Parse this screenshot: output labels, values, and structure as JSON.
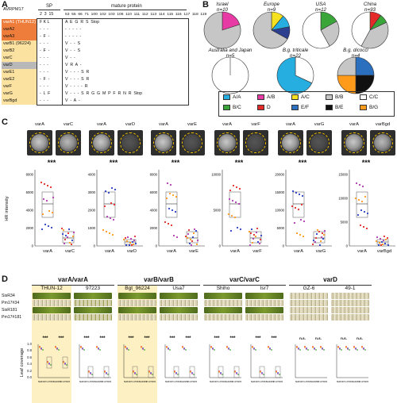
{
  "panel_labels": {
    "a": "A",
    "b": "B",
    "c": "C",
    "d": "D"
  },
  "panelA": {
    "header": "AVRPM17",
    "sp_label": "SP",
    "mature_label": "mature protein",
    "sp_positions": "2  3  15",
    "mature_positions": "53  55  66  71  100  102  103  106  110  111  112  113  114  115  116  117  118  119",
    "rows": [
      {
        "name": "varA1 (THUN12)",
        "sp": "F K L",
        "mat": "A  E  G  R  S  Stop",
        "color": "#ee7d3c"
      },
      {
        "name": "varA2",
        "sp": "-  -  -",
        "mat": "-  -  -  -  -",
        "color": "#ee7d3c"
      },
      {
        "name": "varA3",
        "sp": "-  F  -",
        "mat": "-  -  -  -  -",
        "color": "#ee7d3c"
      },
      {
        "name": "varB1 (96224)",
        "sp": "-  -  -",
        "mat": "V  -  -  S",
        "color": "#fbe2a0"
      },
      {
        "name": "varB2",
        "sp": "-  F  -",
        "mat": "V  -  -  S",
        "color": "#fbe2a0"
      },
      {
        "name": "varC",
        "sp": "-  -  -",
        "mat": "V  -  -",
        "color": "#fbe2a0"
      },
      {
        "name": "varD",
        "sp": "-  -  -",
        "mat": "V  R  A  -",
        "color": "#b8b8b8"
      },
      {
        "name": "varE1",
        "sp": "-  -  -",
        "mat": "V  -  -  -  S  R",
        "color": "#fbe2a0"
      },
      {
        "name": "varE2",
        "sp": "-  F  -",
        "mat": "V  -  -  -  S  R",
        "color": "#fbe2a0"
      },
      {
        "name": "varF",
        "sp": "-  -  -",
        "mat": "V  -  -  -  -  R",
        "color": "#fbe2a0"
      },
      {
        "name": "varG",
        "sp": "-  L  F",
        "mat": "V  -  -  -  S  R  G  G  M  P  F  R  N  R  Stop",
        "color": "#fbe2a0"
      },
      {
        "name": "varBgd",
        "sp": "-  -  -",
        "mat": "V  -  A  -",
        "color": "#fbe2a0"
      }
    ]
  },
  "panelB": {
    "pies": [
      {
        "title": "Israel",
        "n": "n=10",
        "slices": [
          {
            "v": 0.2,
            "c": "#e83aa5"
          },
          {
            "v": 0.8,
            "c": "#c6c6c6"
          }
        ]
      },
      {
        "title": "Europe",
        "n": "n=9",
        "slices": [
          {
            "v": 0.11,
            "c": "#f5e11f"
          },
          {
            "v": 0.11,
            "c": "#27aee0"
          },
          {
            "v": 0.11,
            "c": "#2d3e8f"
          },
          {
            "v": 0.67,
            "c": "#c6c6c6"
          }
        ]
      },
      {
        "title": "USA",
        "n": "n=12",
        "slices": [
          {
            "v": 0.17,
            "c": "#3aa63a"
          },
          {
            "v": 0.25,
            "c": "#c6c6c6"
          },
          {
            "v": 0.58,
            "c": "#ffffff"
          }
        ]
      },
      {
        "title": "China",
        "n": "n=93",
        "slices": [
          {
            "v": 0.1,
            "c": "#e52a2a"
          },
          {
            "v": 0.08,
            "c": "#3aa63a"
          },
          {
            "v": 0.4,
            "c": "#c6c6c6"
          },
          {
            "v": 0.42,
            "c": "#ffffff"
          }
        ]
      },
      {
        "title": "Australia and Japan",
        "n": "n=5",
        "slices": [
          {
            "v": 1.0,
            "c": "#ffffff"
          }
        ]
      },
      {
        "title": "B.g. triticale",
        "n": "n=22",
        "slices": [
          {
            "v": 0.32,
            "c": "#ffffff"
          },
          {
            "v": 0.68,
            "c": "#27aee0"
          }
        ]
      },
      {
        "title": "B.g. dicocci",
        "n": "n=4",
        "slices": [
          {
            "v": 0.25,
            "c": "#2b6fbf"
          },
          {
            "v": 0.25,
            "c": "#111111"
          },
          {
            "v": 0.25,
            "c": "#ff9a1a"
          },
          {
            "v": 0.25,
            "c": "#c6c6c6"
          }
        ]
      }
    ],
    "legend": [
      {
        "label": "A/A",
        "c": "#27aee0"
      },
      {
        "label": "A/B",
        "c": "#e83aa5"
      },
      {
        "label": "A/C",
        "c": "#f5e11f"
      },
      {
        "label": "B/B",
        "c": "#c6c6c6"
      },
      {
        "label": "C/C",
        "c": "#ffffff"
      },
      {
        "label": "B/C",
        "c": "#3aa63a"
      },
      {
        "label": "D",
        "c": "#e52a2a"
      },
      {
        "label": "E/F",
        "c": "#2b6fbf"
      },
      {
        "label": "B/E",
        "c": "#111111"
      },
      {
        "label": "B/G",
        "c": "#ff9a1a"
      }
    ]
  },
  "panelC": {
    "ylabel": "HR intensity",
    "sig": "***",
    "pairs": [
      {
        "a": "varA",
        "b": "varC",
        "yticks": [
          "0",
          "2000",
          "4000",
          "6000",
          "8000"
        ]
      },
      {
        "a": "varA",
        "b": "varD",
        "yticks": [
          "0",
          "1000",
          "2000",
          "3000",
          "4000"
        ]
      },
      {
        "a": "varA",
        "b": "varE",
        "yticks": [
          "0",
          "2000",
          "4000",
          "6000",
          "8000"
        ]
      },
      {
        "a": "varA",
        "b": "varF",
        "yticks": [
          "0",
          "5000",
          "10000"
        ]
      },
      {
        "a": "varA",
        "b": "varG",
        "yticks": [
          "0",
          "5000",
          "10000",
          "15000",
          "20000"
        ]
      },
      {
        "a": "varA",
        "b": "varBgd",
        "yticks": [
          "0",
          "5000",
          "10000",
          "15000"
        ]
      }
    ]
  },
  "panelD": {
    "groups": [
      {
        "title": "varA/varA",
        "isolates": [
          "THUN-12",
          "97223"
        ]
      },
      {
        "title": "varB/varB",
        "isolates": [
          "Bgt_96224",
          "Usa7"
        ]
      },
      {
        "title": "varC/varC",
        "isolates": [
          "Shiho",
          "Isr7"
        ]
      },
      {
        "title": "varD",
        "isolates": [
          "GZ-6",
          "49-1"
        ]
      }
    ],
    "lines": [
      "SisR34",
      "Pm17#34",
      "SisR181",
      "Pm17#181"
    ],
    "ylabel": "Leaf coverage",
    "yticks": [
      "0.0",
      "0.2",
      "0.4",
      "0.6",
      "0.8",
      "1.0"
    ],
    "sig_labels": [
      "***",
      "***",
      "***",
      "***",
      "***",
      "***",
      "***",
      "***",
      "***",
      "***",
      "***",
      "***",
      "n.s.",
      "n.s.",
      "n.s.",
      "n.s."
    ]
  }
}
